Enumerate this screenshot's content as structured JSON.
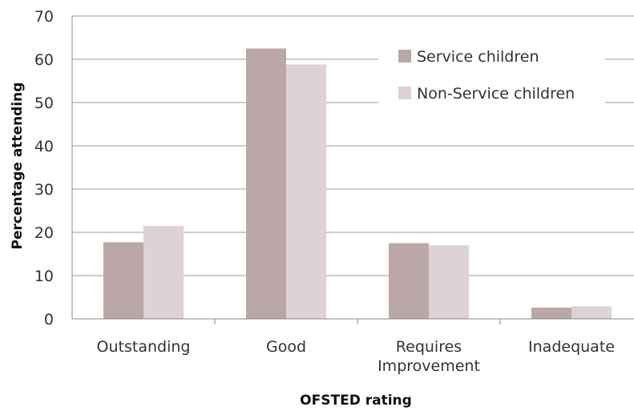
{
  "chart_data": {
    "type": "bar",
    "title": "",
    "xlabel": "OFSTED rating",
    "ylabel": "Percentage attending",
    "ylim": [
      0,
      70
    ],
    "yticks": [
      0,
      10,
      20,
      30,
      40,
      50,
      60,
      70
    ],
    "grid": true,
    "legend_position": "top-right",
    "categories": [
      [
        "Outstanding"
      ],
      [
        "Good"
      ],
      [
        "Requires",
        "Improvement"
      ],
      [
        "Inadequate"
      ]
    ],
    "series": [
      {
        "name": "Service children",
        "color": "#bba6a8",
        "values": [
          17.7,
          62.5,
          17.5,
          2.6
        ]
      },
      {
        "name": "Non-Service children",
        "color": "#ddd2d4",
        "values": [
          21.5,
          58.8,
          17.0,
          2.9
        ]
      }
    ]
  }
}
